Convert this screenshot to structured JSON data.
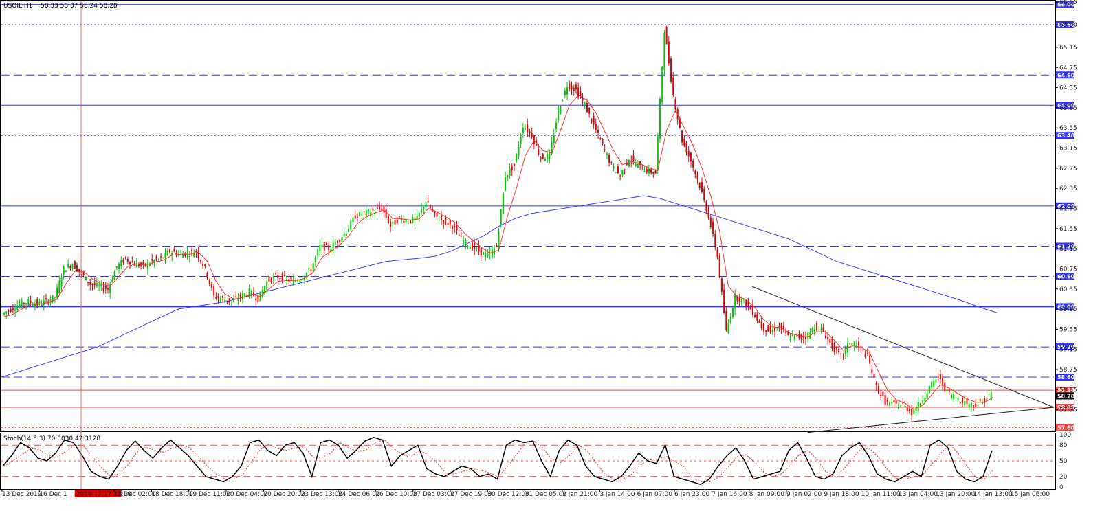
{
  "header": {
    "symbol": "USOIL,H1",
    "ohlc": "58.33 58.37 58.24 58.28"
  },
  "stoch_header": "Stoch(14,5,3) 70.3030 42.3128",
  "colors": {
    "bull": "#00c800",
    "bear": "#e00000",
    "ma_fast": "#ff3030",
    "ma_slow": "#3a3aff",
    "level_blue": "#3030ff",
    "level_red": "#ff4040",
    "trend": "#222222",
    "stoch_main": "#000000",
    "stoch_signal": "#ff2020",
    "crosshair": "#ff6060"
  },
  "chart_data": {
    "type": "candlestick",
    "symbol": "USOIL",
    "timeframe": "H1",
    "ylim": [
      57.55,
      66.05
    ],
    "y_ticks": [
      66.05,
      65.6,
      65.15,
      64.75,
      64.35,
      63.95,
      63.55,
      63.15,
      62.75,
      62.35,
      61.95,
      61.55,
      61.15,
      60.75,
      60.35,
      59.95,
      59.55,
      59.15,
      58.75,
      58.35,
      57.95
    ],
    "x_labels": [
      "13 Dec 2019",
      "16 Dec 1",
      "2019.12.17 12:00",
      "18 Dec 02:00",
      "18 Dec 18:00",
      "19 Dec 11:00",
      "20 Dec 04:00",
      "20 Dec 20:00",
      "23 Dec 13:00",
      "24 Dec 06:00",
      "26 Dec 10:00",
      "27 Dec 03:00",
      "27 Dec 19:00",
      "30 Dec 12:00",
      "31 Dec 05:00",
      "2 Jan 21:00",
      "3 Jan 14:00",
      "6 Jan 07:00",
      "6 Jan 23:00",
      "7 Jan 16:00",
      "8 Jan 09:00",
      "9 Jan 02:00",
      "9 Jan 18:00",
      "10 Jan 11:00",
      "13 Jan 04:00",
      "13 Jan 20:00",
      "14 Jan 13:00",
      "15 Jan 06:00"
    ],
    "highlighted_time": "2019.12.17 12:00",
    "levels": [
      {
        "value": 66.0,
        "label": "66.00",
        "style": "solid",
        "color": "blue"
      },
      {
        "value": 65.6,
        "label": "65.60",
        "style": "dotted",
        "color": "blue"
      },
      {
        "value": 64.6,
        "label": "64.60",
        "style": "dashed",
        "color": "blue"
      },
      {
        "value": 64.0,
        "label": "64.00",
        "style": "solid",
        "color": "blue"
      },
      {
        "value": 63.4,
        "label": "63.40",
        "style": "dotted",
        "color": "blue"
      },
      {
        "value": 62.0,
        "label": "62.00",
        "style": "solid",
        "color": "blue"
      },
      {
        "value": 61.2,
        "label": "61.20",
        "style": "dashed",
        "color": "blue"
      },
      {
        "value": 60.6,
        "label": "60.60",
        "style": "dashed",
        "color": "blue"
      },
      {
        "value": 60.0,
        "label": "60.00",
        "style": "solid-thick",
        "color": "blue"
      },
      {
        "value": 59.2,
        "label": "59.20",
        "style": "dashed",
        "color": "blue"
      },
      {
        "value": 58.6,
        "label": "58.60",
        "style": "dashed",
        "color": "blue"
      },
      {
        "value": 58.34,
        "label": "58.34",
        "style": "solid",
        "color": "red"
      },
      {
        "value": 58.0,
        "label": "58.00",
        "style": "solid",
        "color": "red"
      },
      {
        "value": 57.6,
        "label": "57.60",
        "style": "dotted",
        "color": "red"
      }
    ],
    "current_price": {
      "value": 58.28,
      "label": "58.28"
    },
    "price_path": [
      59.85,
      59.95,
      60.05,
      60.1,
      60.05,
      60.1,
      60.2,
      60.75,
      60.85,
      60.65,
      60.45,
      60.4,
      60.35,
      60.8,
      60.95,
      60.85,
      60.8,
      60.9,
      60.95,
      61.1,
      61.05,
      61.05,
      61.1,
      60.75,
      60.2,
      60.15,
      60.1,
      60.2,
      60.3,
      60.15,
      60.5,
      60.6,
      60.55,
      60.5,
      60.6,
      60.75,
      61.2,
      61.15,
      61.3,
      61.5,
      61.8,
      61.85,
      61.9,
      61.95,
      61.6,
      61.75,
      61.7,
      61.75,
      62.1,
      61.8,
      61.7,
      61.6,
      61.35,
      61.2,
      61.1,
      61.0,
      61.2,
      62.6,
      62.8,
      63.6,
      63.4,
      62.95,
      63.0,
      63.9,
      64.4,
      64.3,
      64.0,
      63.6,
      63.2,
      62.8,
      62.6,
      62.95,
      62.8,
      62.7,
      62.65,
      65.5,
      64.2,
      63.3,
      62.9,
      62.4,
      61.8,
      61.0,
      59.5,
      60.2,
      60.1,
      59.9,
      59.6,
      59.5,
      59.6,
      59.4,
      59.4,
      59.4,
      59.6,
      59.5,
      59.2,
      59.0,
      59.3,
      59.2,
      59.0,
      58.4,
      58.1,
      58.05,
      58.05,
      57.9,
      58.1,
      58.4,
      58.6,
      58.3,
      58.2,
      58.1,
      58.05,
      58.1,
      58.28
    ],
    "ma_fast_path": [
      59.8,
      59.85,
      59.95,
      60.05,
      60.05,
      60.08,
      60.15,
      60.45,
      60.7,
      60.7,
      60.55,
      60.45,
      60.4,
      60.6,
      60.8,
      60.85,
      60.82,
      60.88,
      60.92,
      61.02,
      61.04,
      61.04,
      61.08,
      60.9,
      60.5,
      60.25,
      60.15,
      60.18,
      60.25,
      60.2,
      60.35,
      60.5,
      60.52,
      60.52,
      60.56,
      60.68,
      60.98,
      61.1,
      61.22,
      61.4,
      61.65,
      61.78,
      61.86,
      61.92,
      61.75,
      61.74,
      61.72,
      61.74,
      61.95,
      61.88,
      61.78,
      61.68,
      61.48,
      61.32,
      61.18,
      61.06,
      61.12,
      61.8,
      62.35,
      63.0,
      63.3,
      63.1,
      63.05,
      63.5,
      64.0,
      64.2,
      64.1,
      63.85,
      63.48,
      63.1,
      62.82,
      62.88,
      62.84,
      62.76,
      62.7,
      63.5,
      63.9,
      63.55,
      63.2,
      62.75,
      62.2,
      61.5,
      60.4,
      60.2,
      60.14,
      59.98,
      59.74,
      59.6,
      59.58,
      59.47,
      59.42,
      59.4,
      59.5,
      59.5,
      59.33,
      59.13,
      59.22,
      59.2,
      59.08,
      58.7,
      58.35,
      58.15,
      58.08,
      57.96,
      58.04,
      58.25,
      58.45,
      58.38,
      58.27,
      58.17,
      58.1,
      58.1,
      58.2
    ],
    "ma_slow_path": [
      58.6,
      58.7,
      58.8,
      58.9,
      59.0,
      59.1,
      59.2,
      59.35,
      59.5,
      59.65,
      59.8,
      59.95,
      60.0,
      60.05,
      60.1,
      60.18,
      60.26,
      60.34,
      60.42,
      60.5,
      60.58,
      60.66,
      60.74,
      60.82,
      60.9,
      60.93,
      60.96,
      61.0,
      61.1,
      61.25,
      61.4,
      61.6,
      61.75,
      61.85,
      61.9,
      61.95,
      62.0,
      62.05,
      62.1,
      62.15,
      62.2,
      62.15,
      62.05,
      61.95,
      61.85,
      61.75,
      61.65,
      61.55,
      61.45,
      61.35,
      61.2,
      61.05,
      60.9,
      60.8,
      60.7,
      60.6,
      60.5,
      60.4,
      60.3,
      60.2,
      60.1,
      59.98,
      59.88
    ],
    "trend_lines": [
      {
        "name": "descending-resistance",
        "from": {
          "x": "8 Jan 14:00",
          "y": 60.4
        },
        "to": {
          "x": "15 Jan 12:00",
          "y": 58.0
        }
      },
      {
        "name": "ascending-support",
        "from": {
          "x": "13 Jan 00:00",
          "y": 57.5
        },
        "to": {
          "x": "15 Jan 12:00",
          "y": 58.0
        }
      }
    ],
    "indicator": {
      "name": "Stoch(14,5,3)",
      "main": 70.303,
      "signal": 42.3128,
      "ylim": [
        0,
        100
      ],
      "y_ticks": [
        100,
        80,
        50,
        20,
        0
      ],
      "levels": [
        80,
        50,
        20
      ],
      "series": [
        40,
        60,
        85,
        75,
        55,
        50,
        65,
        90,
        85,
        60,
        30,
        20,
        15,
        40,
        70,
        88,
        70,
        55,
        75,
        90,
        75,
        60,
        40,
        20,
        15,
        10,
        20,
        40,
        85,
        90,
        70,
        60,
        80,
        85,
        65,
        20,
        85,
        90,
        80,
        55,
        70,
        88,
        95,
        90,
        40,
        60,
        70,
        80,
        35,
        25,
        20,
        30,
        40,
        35,
        20,
        25,
        15,
        80,
        90,
        85,
        88,
        50,
        20,
        70,
        90,
        80,
        40,
        20,
        15,
        10,
        20,
        40,
        65,
        50,
        45,
        80,
        20,
        15,
        10,
        5,
        15,
        40,
        60,
        75,
        50,
        15,
        20,
        25,
        30,
        70,
        85,
        55,
        20,
        15,
        25,
        60,
        75,
        85,
        60,
        25,
        15,
        10,
        20,
        30,
        20,
        80,
        90,
        75,
        30,
        15,
        10,
        20,
        70
      ]
    }
  }
}
